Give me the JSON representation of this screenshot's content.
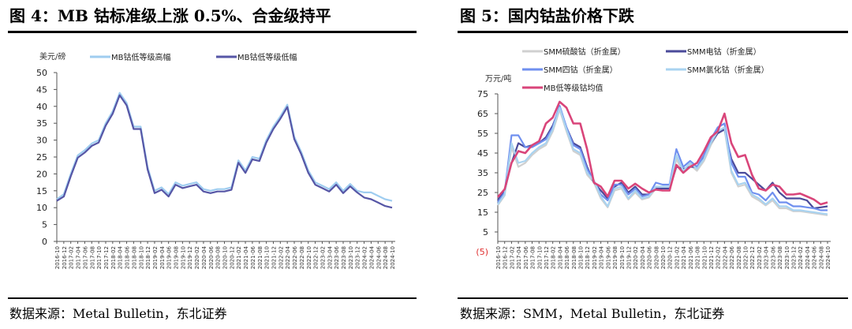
{
  "figures": [
    {
      "title": "图 4：MB 钴标准级上涨 0.5%、合金级持平",
      "source": "数据来源：Metal Bulletin，东北证券"
    },
    {
      "title": "图 5：国内钴盐价格下跌",
      "source": "数据来源：SMM，Metal Bulletin，东北证券"
    }
  ],
  "chart_data": [
    {
      "type": "line",
      "unit": "美元/磅",
      "ylim": [
        0,
        50
      ],
      "yticks": [
        "50",
        "45",
        "40",
        "35",
        "30",
        "25",
        "20",
        "15",
        "10",
        "5",
        "0"
      ],
      "legend_position": "top",
      "series": [
        {
          "name": "MB钴低等级高幅",
          "color": "#9fcdf0",
          "values": [
            12.5,
            14,
            20,
            25.5,
            27,
            29,
            30,
            35,
            38.5,
            44,
            41,
            34,
            34,
            22,
            15,
            16,
            14,
            17.5,
            16.5,
            17,
            17.5,
            15.5,
            15,
            15.5,
            15.5,
            16,
            24,
            21,
            25,
            24.5,
            30,
            34,
            37,
            40.5,
            31,
            26.5,
            21,
            17.5,
            16.5,
            15.5,
            17.5,
            15,
            17,
            15,
            14.5,
            14.5,
            13.5,
            12.5,
            12
          ]
        },
        {
          "name": "MB钴低等级低幅",
          "color": "#5656a6",
          "values": [
            12,
            13.3,
            19.3,
            24.8,
            26.3,
            28.3,
            29.3,
            34.3,
            37.8,
            43.3,
            40.3,
            33.3,
            33.3,
            21.3,
            14.3,
            15.3,
            13.3,
            16.8,
            15.8,
            16.3,
            16.8,
            14.8,
            14.3,
            14.8,
            14.8,
            15.3,
            23.3,
            20.3,
            24.3,
            23.8,
            29.3,
            33.3,
            36.3,
            39.8,
            30.3,
            25.8,
            20.3,
            16.8,
            15.8,
            14.8,
            16.8,
            14.3,
            16.3,
            14.5,
            13,
            12.5,
            11.5,
            10.5,
            10
          ]
        }
      ]
    },
    {
      "type": "line",
      "unit": "万元/吨",
      "ylim": [
        -5,
        75
      ],
      "yticks": [
        "75",
        "65",
        "55",
        "45",
        "35",
        "25",
        "15",
        "5",
        "(5)"
      ],
      "legend_position": "top",
      "series": [
        {
          "name": "SMM硫酸钴（折金属）",
          "color": "#d0d0d0",
          "values": [
            18.5,
            23.5,
            48,
            38,
            40,
            44,
            47,
            49,
            56,
            67,
            56,
            46,
            44,
            34,
            30,
            22,
            17.5,
            26,
            27,
            21.5,
            25,
            21.5,
            22.5,
            27,
            27,
            27,
            42,
            35,
            39,
            36,
            41,
            49,
            55,
            57,
            35,
            28,
            29,
            23,
            21,
            18.5,
            21,
            17,
            17,
            15.5,
            15.5,
            15,
            14.5,
            14,
            13.5
          ]
        },
        {
          "name": "SMM电钴（折金属）",
          "color": "#4a4a9a",
          "values": [
            21,
            26,
            40,
            50,
            48,
            49,
            50,
            53,
            59,
            68,
            58,
            50,
            48,
            38,
            30,
            26,
            22,
            28,
            30,
            25,
            28,
            24,
            24,
            27,
            27,
            27,
            38,
            37,
            38,
            38,
            43,
            50,
            55,
            57,
            42,
            35,
            35,
            32,
            29,
            26,
            30,
            25,
            22,
            22,
            22,
            21,
            17,
            17.5,
            18
          ]
        },
        {
          "name": "SMM四钴（折金属）",
          "color": "#6f8fef",
          "values": [
            20,
            25,
            54,
            54,
            48,
            48,
            50,
            52,
            58,
            69,
            58,
            49,
            47,
            37,
            31,
            24,
            21,
            29,
            29,
            24,
            27,
            23,
            24,
            30,
            29,
            29,
            47,
            38,
            41,
            38,
            44,
            52,
            58,
            60,
            40,
            33,
            33,
            25,
            24,
            21,
            25,
            20,
            20,
            18,
            18,
            17.5,
            17,
            16,
            16
          ]
        },
        {
          "name": "SMM氯化钴（折金属）",
          "color": "#a9d3f0",
          "values": [
            19,
            24,
            50,
            40,
            41,
            45,
            48,
            50,
            57,
            68,
            57,
            47,
            45,
            35,
            31,
            23,
            18,
            27,
            28,
            22,
            26,
            22,
            23,
            28,
            28,
            28,
            44,
            36,
            40,
            37,
            42,
            50,
            56,
            58,
            36,
            29,
            30,
            24,
            22,
            19,
            22,
            18,
            18,
            16,
            16,
            15.5,
            15,
            14.5,
            14
          ]
        },
        {
          "name": "MB低等级钴均值",
          "color": "#d9457a",
          "values": [
            22.7,
            26.7,
            40,
            46,
            45,
            49,
            51,
            60,
            63,
            71,
            68,
            60,
            60,
            47,
            30,
            28,
            23,
            31,
            31,
            27,
            29.5,
            27,
            25,
            26.5,
            26,
            26,
            39,
            35,
            38,
            40,
            46,
            53,
            56,
            65,
            50,
            43,
            44,
            34,
            27,
            26,
            29,
            28,
            24,
            24,
            24.5,
            23,
            21.5,
            19,
            20
          ]
        }
      ]
    }
  ],
  "xticks": [
    "2016-10",
    "2016-12",
    "2017-02",
    "2017-04",
    "2017-06",
    "2017-08",
    "2017-10",
    "2017-12",
    "2018-02",
    "2018-04",
    "2018-06",
    "2018-08",
    "2018-10",
    "2018-12",
    "2019-02",
    "2019-04",
    "2019-06",
    "2019-08",
    "2019-10",
    "2019-12",
    "2020-02",
    "2020-04",
    "2020-06",
    "2020-08",
    "2020-10",
    "2020-12",
    "2021-02",
    "2021-04",
    "2021-06",
    "2021-08",
    "2021-10",
    "2021-12",
    "2022-02",
    "2022-04",
    "2022-06",
    "2022-08",
    "2022-10",
    "2022-12",
    "2023-02",
    "2023-04",
    "2023-06",
    "2023-08",
    "2023-10",
    "2023-12",
    "2024-02",
    "2024-04",
    "2024-06",
    "2024-08",
    "2024-10"
  ]
}
